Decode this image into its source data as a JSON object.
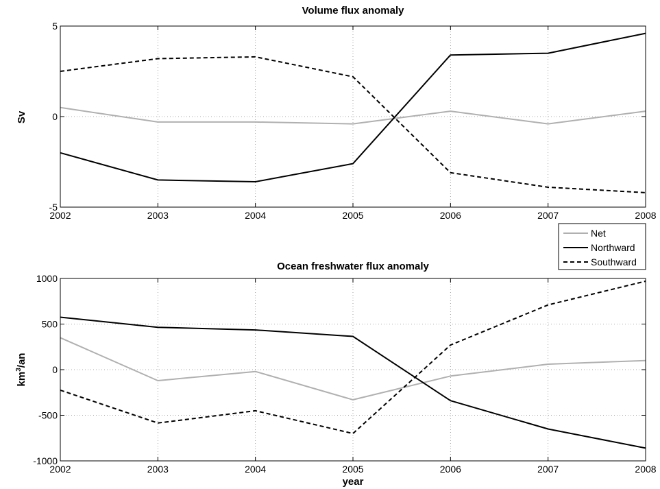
{
  "chart_data": [
    {
      "type": "line",
      "title": "Volume flux anomaly",
      "xlabel": "",
      "ylabel": "Sv",
      "x": [
        2002,
        2003,
        2004,
        2005,
        2006,
        2007,
        2008
      ],
      "xlim": [
        2002,
        2008
      ],
      "ylim": [
        -5,
        5
      ],
      "xticks": [
        "2002",
        "2003",
        "2004",
        "2005",
        "2006",
        "2007",
        "2008"
      ],
      "yticks": [
        -5,
        0,
        5
      ],
      "grid": true,
      "series": [
        {
          "name": "Net",
          "color": "#b0b0b0",
          "style": "solid",
          "values": [
            0.5,
            -0.3,
            -0.3,
            -0.4,
            0.3,
            -0.4,
            0.3
          ]
        },
        {
          "name": "Northward",
          "color": "#000000",
          "style": "solid",
          "values": [
            -2.0,
            -3.5,
            -3.6,
            -2.6,
            3.4,
            3.5,
            4.6
          ]
        },
        {
          "name": "Southward",
          "color": "#000000",
          "style": "dashed",
          "values": [
            2.5,
            3.2,
            3.3,
            2.2,
            -3.1,
            -3.9,
            -4.2
          ]
        }
      ]
    },
    {
      "type": "line",
      "title": "Ocean freshwater flux anomaly",
      "xlabel": "year",
      "ylabel": "km³/an",
      "ylabel_base": "km",
      "ylabel_sup": "3",
      "ylabel_tail": "/an",
      "x": [
        2002,
        2003,
        2004,
        2005,
        2006,
        2007,
        2008
      ],
      "xlim": [
        2002,
        2008
      ],
      "ylim": [
        -1000,
        1000
      ],
      "xticks": [
        "2002",
        "2003",
        "2004",
        "2005",
        "2006",
        "2007",
        "2008"
      ],
      "yticks": [
        -1000,
        -500,
        0,
        500,
        1000
      ],
      "grid": true,
      "series": [
        {
          "name": "Net",
          "color": "#b0b0b0",
          "style": "solid",
          "values": [
            350,
            -120,
            -20,
            -330,
            -70,
            60,
            100
          ]
        },
        {
          "name": "Northward",
          "color": "#000000",
          "style": "solid",
          "values": [
            575,
            465,
            435,
            365,
            -340,
            -650,
            -860
          ]
        },
        {
          "name": "Southward",
          "color": "#000000",
          "style": "dashed",
          "values": [
            -225,
            -585,
            -450,
            -700,
            270,
            710,
            970
          ]
        }
      ]
    }
  ],
  "legend": {
    "placement": "between-panels-right",
    "entries": [
      "Net",
      "Northward",
      "Southward"
    ]
  }
}
